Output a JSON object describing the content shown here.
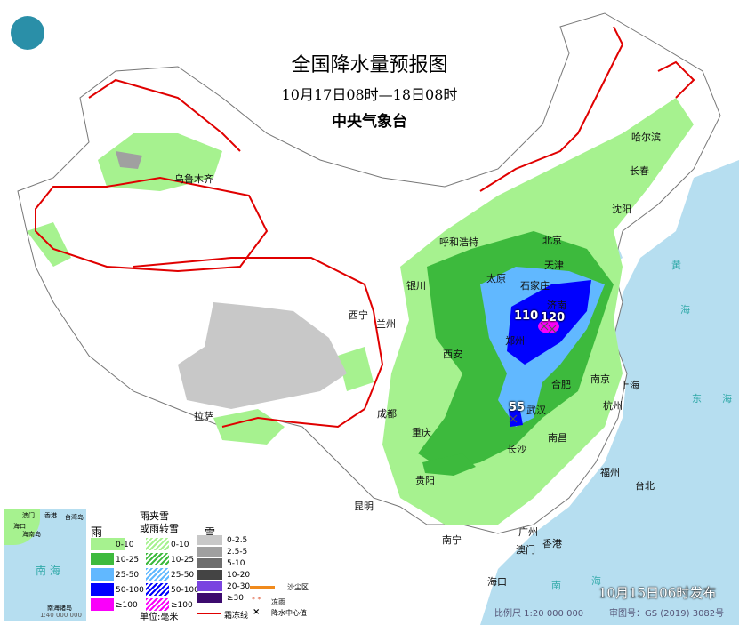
{
  "title": "全国降水量预报图",
  "period": "10月17日08时—18日08时",
  "issuer": "中央气象台",
  "release": "10月15日06时发布",
  "scale": "比例尺 1:20 000 000",
  "map_approval": "审图号：GS (2019) 3082号",
  "colors": {
    "sea": "#b6def0",
    "rain_0_10": "#a6f28f",
    "rain_10_25": "#3dba3d",
    "rain_25_50": "#61b8ff",
    "rain_50_100": "#0000fe",
    "rain_100": "#fa00fa",
    "frost_line": "#e00000"
  },
  "cities": [
    "乌鲁木齐",
    "哈尔滨",
    "长春",
    "沈阳",
    "呼和浩特",
    "北京",
    "天津",
    "太原",
    "石家庄",
    "济南",
    "银川",
    "西宁",
    "兰州",
    "郑州",
    "西安",
    "合肥",
    "南京",
    "上海",
    "武汉",
    "杭州",
    "成都",
    "重庆",
    "长沙",
    "南昌",
    "拉萨",
    "贵阳",
    "福州",
    "台北",
    "昆明",
    "南宁",
    "广州",
    "香港",
    "澳门",
    "海口"
  ],
  "sea_labels": [
    "黄",
    "海",
    "东",
    "海",
    "南",
    "海"
  ],
  "max_values": [
    "110",
    "120",
    "55"
  ],
  "inset": {
    "sea": "南 海",
    "islands": "南海诸岛",
    "scale": "1:40 000 000",
    "labels": [
      "澳门",
      "香港",
      "台湾岛",
      "海口",
      "海南岛"
    ]
  },
  "legend": {
    "rain": {
      "title": "雨",
      "items": [
        "0-10",
        "10-25",
        "25-50",
        "50-100",
        "≥100"
      ]
    },
    "sleet": {
      "title": "雨夹雪\n或雨转雪",
      "title1": "雨夹雪",
      "title2": "或雨转雪",
      "items": [
        "0-10",
        "10-25",
        "25-50",
        "50-100",
        "≥100"
      ]
    },
    "snow": {
      "title": "雪",
      "items": [
        "0-2.5",
        "2.5-5",
        "5-10",
        "10-20",
        "20-30",
        "≥30"
      ]
    },
    "unit": "单位:毫米",
    "frost_line": "霜冻线",
    "sand": "沙尘区",
    "freezing_rain": "冻雨",
    "center": "降水中心值"
  }
}
